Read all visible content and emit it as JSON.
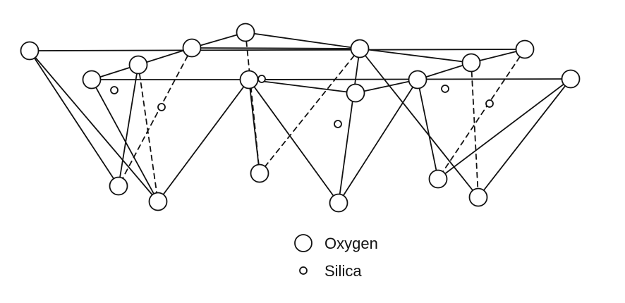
{
  "colors": {
    "stroke": "#111111",
    "background": "#ffffff"
  },
  "legend": {
    "oxygen_label": "Oxygen",
    "silica_label": "Silica"
  }
}
